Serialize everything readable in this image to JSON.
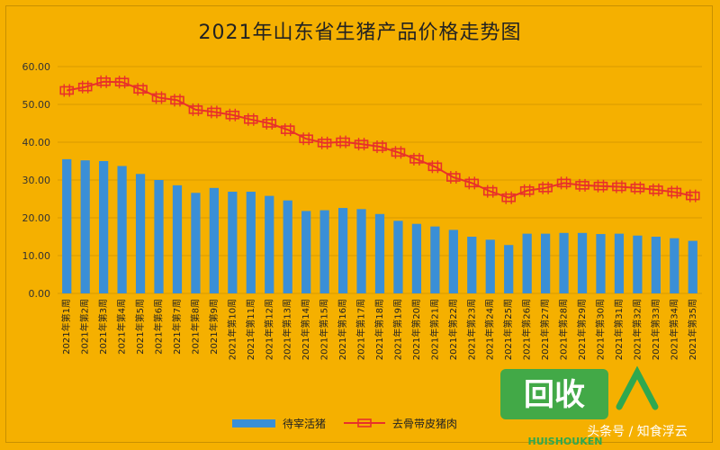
{
  "chart_data": {
    "type": "bar",
    "title": "2021年山东省生猪产品价格走势图",
    "ylim": [
      0,
      60
    ],
    "yticks": [
      "0.00",
      "10.00",
      "20.00",
      "30.00",
      "40.00",
      "50.00",
      "60.00"
    ],
    "grid": true,
    "legend_position": "bottom",
    "categories": [
      "2021年第1周",
      "2021年第2周",
      "2021年第3周",
      "2021年第4周",
      "2021年第5周",
      "2021年第6周",
      "2021年第7周",
      "2021年第8周",
      "2021年第9周",
      "2021年第10周",
      "2021年第11周",
      "2021年第12周",
      "2021年第13周",
      "2021年第14周",
      "2021年第15周",
      "2021年第16周",
      "2021年第17周",
      "2021年第18周",
      "2021年第19周",
      "2021年第20周",
      "2021年第21周",
      "2021年第22周",
      "2021年第23周",
      "2021年第24周",
      "2021年第25周",
      "2021年第26周",
      "2021年第27周",
      "2021年第28周",
      "2021年第29周",
      "2021年第30周",
      "2021年第31周",
      "2021年第32周",
      "2021年第33周",
      "2021年第34周",
      "2021年第35周"
    ],
    "series": [
      {
        "name": "待宰活猪",
        "type": "bar",
        "color": "#3A8FD6",
        "values": [
          35.5,
          35.2,
          35.0,
          33.7,
          31.6,
          30.0,
          28.6,
          26.6,
          27.9,
          26.9,
          26.9,
          25.8,
          24.6,
          21.8,
          22.0,
          22.6,
          22.3,
          21.0,
          19.2,
          18.4,
          17.7,
          16.8,
          15.0,
          14.2,
          12.8,
          15.8,
          15.8,
          16.0,
          16.0,
          15.7,
          15.8,
          15.3,
          15.0,
          14.6,
          13.9
        ]
      },
      {
        "name": "去骨带皮猪肉",
        "type": "line",
        "color": "#E8312A",
        "values": [
          53.7,
          54.6,
          56.0,
          55.9,
          54.0,
          51.8,
          51.1,
          48.6,
          48.0,
          47.2,
          46.0,
          45.0,
          43.3,
          40.9,
          39.8,
          40.1,
          39.5,
          38.8,
          37.3,
          35.5,
          33.5,
          30.7,
          29.2,
          27.0,
          25.3,
          27.2,
          27.9,
          29.2,
          28.6,
          28.4,
          28.2,
          27.9,
          27.4,
          26.8,
          25.8
        ]
      }
    ]
  },
  "watermark": {
    "logo_text": "回收",
    "logo_sub": "HUISHOUKEN",
    "caption": "头条号 / 知食浮云"
  }
}
